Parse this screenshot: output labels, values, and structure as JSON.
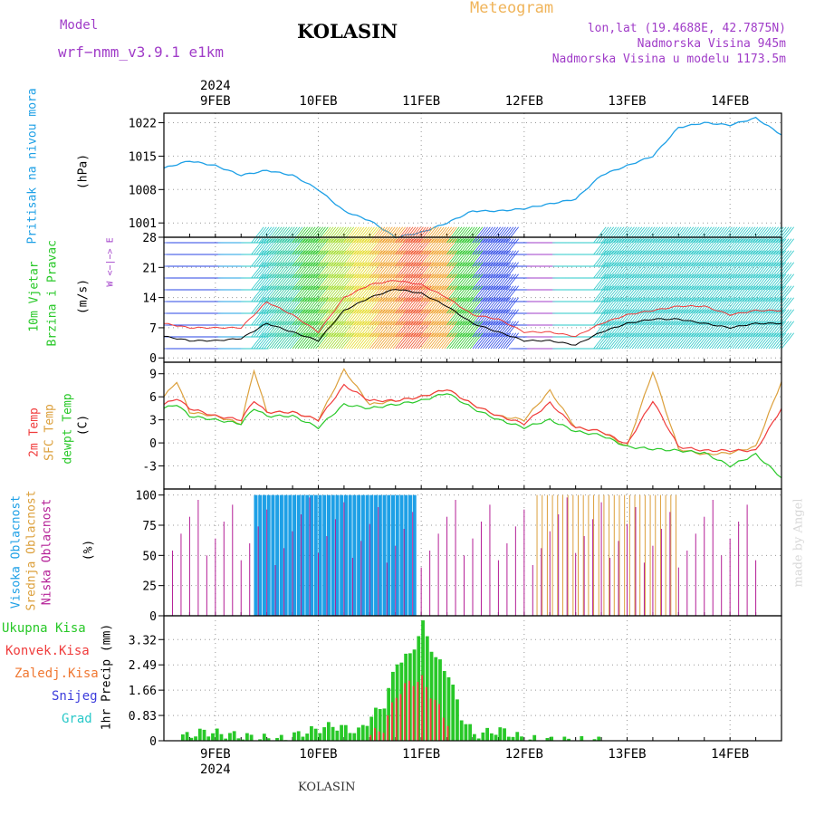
{
  "header": {
    "model_label": "Model",
    "model_name": "wrf−nmm_v3.9.1  e1km",
    "station": "KOLASIN",
    "title": "Meteogram",
    "lonlat": "lon,lat (19.4688E, 42.7875N)",
    "elev": "Nadmorska Visina 945m",
    "elev_model": "Nadmorska Visina u modelu 1173.5m"
  },
  "footer": {
    "station": "KOLASIN",
    "credit": "made by Angel"
  },
  "axis": {
    "year": "2024",
    "dates": [
      "9FEB",
      "10FEB",
      "11FEB",
      "12FEB",
      "13FEB",
      "14FEB"
    ]
  },
  "panel_labels": {
    "pressure": "Pritisak na nivou mora",
    "pressure_unit": "(hPa)",
    "wind1": "10m Vjetar",
    "wind2": "Brzina i Pravac",
    "wind_unit": "(m/s)",
    "wind_legend": "W <−|−> E",
    "temp1": "2m Temp",
    "temp2": "SFC Temp",
    "temp3": "dewpt Temp",
    "temp_unit": "(C)",
    "cloud1": "Visoka Oblacnost",
    "cloud2": "Srednja Oblacnost",
    "cloud3": "Niska Oblacnost",
    "cloud_unit": "(%)",
    "precip_unit": "1hr Precip (mm)",
    "precip_legend": [
      "Ukupna Kisa",
      "Konvek.Kisa",
      "Zaledj.Kisa",
      "Snijeg",
      "Grad"
    ]
  },
  "colors": {
    "pressure": "#1ea0e6",
    "t2m": "#f03c3c",
    "tsfc": "#dca03c",
    "dewpt": "#28c828",
    "high_cloud": "#1ea0e6",
    "mid_cloud": "#dca03c",
    "low_cloud": "#b41e96",
    "precip_total": "#28c828",
    "precip_conv": "#f03c3c",
    "precip_frz": "#f07832",
    "snow": "#3c3cdc",
    "hail": "#28c8c8",
    "title_orange": "#f0b45a",
    "purple": "#a03cc8"
  },
  "chart_data": [
    {
      "type": "line",
      "title": "Pritisak na nivou mora",
      "ylabel": "(hPa)",
      "x_start": "2024-02-08 12:00",
      "x_end": "2024-02-14 12:00",
      "ylim": [
        998,
        1024
      ],
      "yticks": [
        1001,
        1008,
        1015,
        1022
      ],
      "series": [
        {
          "name": "Pritisak na nivou mora",
          "x": [
            0,
            6,
            12,
            18,
            24,
            30,
            36,
            42,
            48,
            54,
            60,
            66,
            72,
            78,
            84,
            90,
            96,
            102,
            108,
            114,
            120,
            126,
            132,
            138,
            144
          ],
          "values": [
            1012.5,
            1014,
            1013,
            1011,
            1012,
            1011,
            1008,
            1003.5,
            1001.5,
            998,
            999,
            1001,
            1003.5,
            1003.5,
            1004,
            1005,
            1006,
            1011,
            1013,
            1015,
            1021,
            1022,
            1021.5,
            1023,
            1019.5
          ]
        }
      ]
    },
    {
      "type": "line",
      "title": "10m Vjetar Brzina i Pravac",
      "ylabel": "(m/s)",
      "ylim": [
        -1,
        28
      ],
      "yticks": [
        0,
        7,
        14,
        21,
        28
      ],
      "series": [
        {
          "name": "Brzina",
          "x": [
            0,
            6,
            12,
            18,
            24,
            30,
            36,
            42,
            48,
            54,
            60,
            66,
            72,
            78,
            84,
            90,
            96,
            102,
            108,
            114,
            120,
            126,
            132,
            138,
            144
          ],
          "values": [
            5,
            4,
            4,
            4.5,
            8,
            6,
            4,
            11,
            14,
            16,
            15,
            12,
            8,
            6,
            4,
            4,
            3,
            6,
            8,
            9,
            9,
            8,
            7,
            8,
            8
          ]
        },
        {
          "name": "Udari",
          "x": [
            0,
            6,
            12,
            18,
            24,
            30,
            36,
            42,
            48,
            54,
            60,
            66,
            72,
            78,
            84,
            90,
            96,
            102,
            108,
            114,
            120,
            126,
            132,
            138,
            144
          ],
          "values": [
            8,
            7,
            7,
            7,
            13,
            10,
            6,
            14,
            17,
            18,
            17,
            14,
            10,
            9,
            6,
            6,
            5,
            8,
            10,
            11,
            12,
            12,
            10,
            11,
            11
          ]
        }
      ]
    },
    {
      "type": "line",
      "title": "2m Temp / SFC Temp / dewpt Temp",
      "ylabel": "(C)",
      "ylim": [
        -6,
        10.5
      ],
      "yticks": [
        -3,
        0,
        3,
        6,
        9
      ],
      "series": [
        {
          "name": "2m Temp",
          "x": [
            0,
            3,
            6,
            12,
            18,
            21,
            24,
            30,
            36,
            42,
            48,
            54,
            60,
            66,
            72,
            78,
            84,
            90,
            96,
            102,
            108,
            114,
            120,
            126,
            132,
            138,
            144
          ],
          "values": [
            5,
            5.8,
            4.5,
            3.5,
            3,
            5.5,
            4,
            4,
            3,
            7.5,
            5.5,
            5.5,
            6,
            7,
            5,
            3.5,
            2.5,
            5.2,
            2,
            1.5,
            -0.2,
            5.5,
            -0.5,
            -1,
            -1,
            -1,
            4.5
          ]
        },
        {
          "name": "SFC Temp",
          "x": [
            0,
            3,
            6,
            12,
            18,
            21,
            24,
            30,
            36,
            42,
            48,
            54,
            60,
            66,
            72,
            78,
            84,
            90,
            96,
            102,
            108,
            114,
            120,
            126,
            132,
            138,
            144
          ],
          "values": [
            6,
            8,
            4,
            3.5,
            2.5,
            9.5,
            4,
            4,
            3,
            9.5,
            5,
            5.5,
            6,
            7,
            5,
            3.5,
            3,
            6.8,
            2,
            1.5,
            -0.5,
            9.3,
            -0.8,
            -1.5,
            -1.3,
            -0.5,
            8
          ]
        },
        {
          "name": "dewpt Temp",
          "x": [
            0,
            3,
            6,
            12,
            18,
            21,
            24,
            30,
            36,
            42,
            48,
            54,
            60,
            66,
            72,
            78,
            84,
            90,
            96,
            102,
            108,
            114,
            120,
            126,
            132,
            138,
            144
          ],
          "values": [
            4.5,
            5,
            3.5,
            3,
            2.5,
            4.5,
            3.5,
            3.5,
            2,
            5,
            4.5,
            5,
            5.5,
            6.5,
            4.5,
            3,
            2,
            3,
            1.5,
            1,
            -0.5,
            -0.8,
            -1,
            -1.3,
            -3,
            -1.5,
            -4.5
          ]
        }
      ]
    },
    {
      "type": "bar",
      "title": "Oblacnost",
      "ylabel": "(%)",
      "ylim": [
        0,
        105
      ],
      "yticks": [
        0,
        25,
        50,
        75,
        100
      ],
      "series": [
        {
          "name": "Visoka Oblacnost",
          "x_range_h": [
            21,
            58
          ],
          "values": 100
        },
        {
          "name": "Srednja Oblacnost",
          "x_range_h": [
            87,
            120
          ],
          "values": 100
        },
        {
          "name": "Niska Oblacnost",
          "x_range_h": [
            0,
            138
          ],
          "values": "intermittent 40-100"
        }
      ]
    },
    {
      "type": "bar",
      "title": "1hr Precip",
      "ylabel": "1hr Precip (mm)",
      "ylim": [
        0,
        4.1
      ],
      "yticks": [
        0,
        0.83,
        1.66,
        2.49,
        3.32
      ],
      "series": [
        {
          "name": "Ukupna Kisa",
          "x_h": [
            3,
            9,
            15,
            21,
            27,
            33,
            39,
            45,
            48,
            51,
            54,
            57,
            60,
            63,
            66,
            69,
            72,
            78,
            84,
            90,
            96,
            102
          ],
          "values": [
            0.1,
            0.3,
            0.2,
            0.1,
            0.05,
            0.3,
            0.5,
            0.3,
            0.8,
            1.2,
            2.6,
            2.8,
            3.8,
            2.7,
            2.2,
            0.8,
            0.2,
            0.35,
            0.05,
            0.01,
            0,
            0
          ]
        },
        {
          "name": "Konvek.Kisa",
          "x_h": [
            48,
            51,
            54,
            57,
            60,
            63,
            66
          ],
          "values": [
            0.2,
            0.4,
            1.5,
            1.9,
            2.0,
            1.3,
            0.6
          ]
        }
      ]
    }
  ]
}
